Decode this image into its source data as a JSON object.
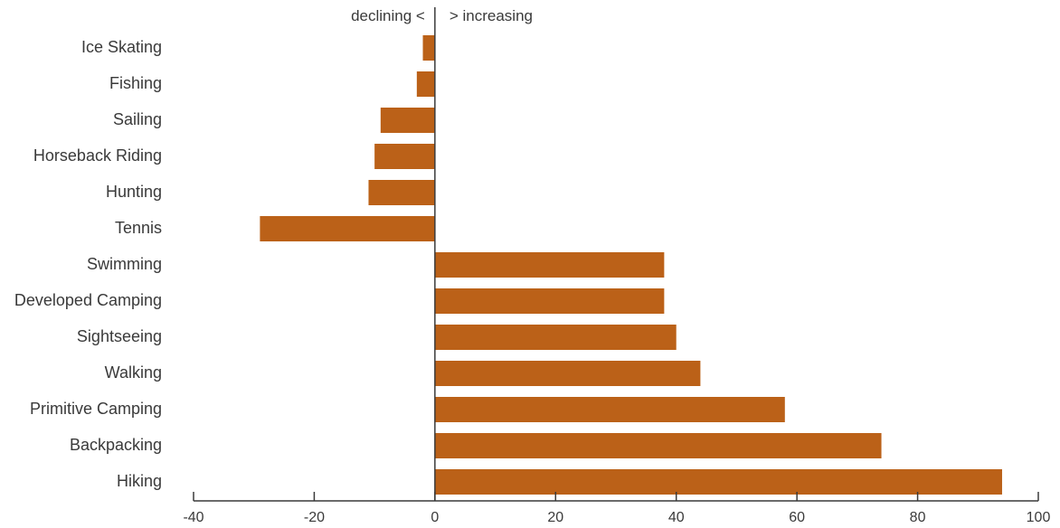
{
  "chart_data": {
    "type": "bar",
    "orientation": "horizontal",
    "categories": [
      "Ice Skating",
      "Fishing",
      "Sailing",
      "Horseback Riding",
      "Hunting",
      "Tennis",
      "Swimming",
      "Developed Camping",
      "Sightseeing",
      "Walking",
      "Primitive Camping",
      "Backpacking",
      "Hiking"
    ],
    "values": [
      -2,
      -3,
      -9,
      -10,
      -11,
      -29,
      38,
      38,
      40,
      44,
      58,
      74,
      94
    ],
    "xlim": [
      -40,
      100
    ],
    "xticks": [
      -40,
      -20,
      0,
      20,
      40,
      60,
      80,
      100
    ],
    "xtick_labels": [
      "-40",
      "-20",
      "0",
      "20",
      "40",
      "60",
      "80",
      "100"
    ],
    "direction_labels": {
      "left": "declining <",
      "right": "> increasing"
    },
    "bar_color": "#bb6118",
    "grid": false
  }
}
